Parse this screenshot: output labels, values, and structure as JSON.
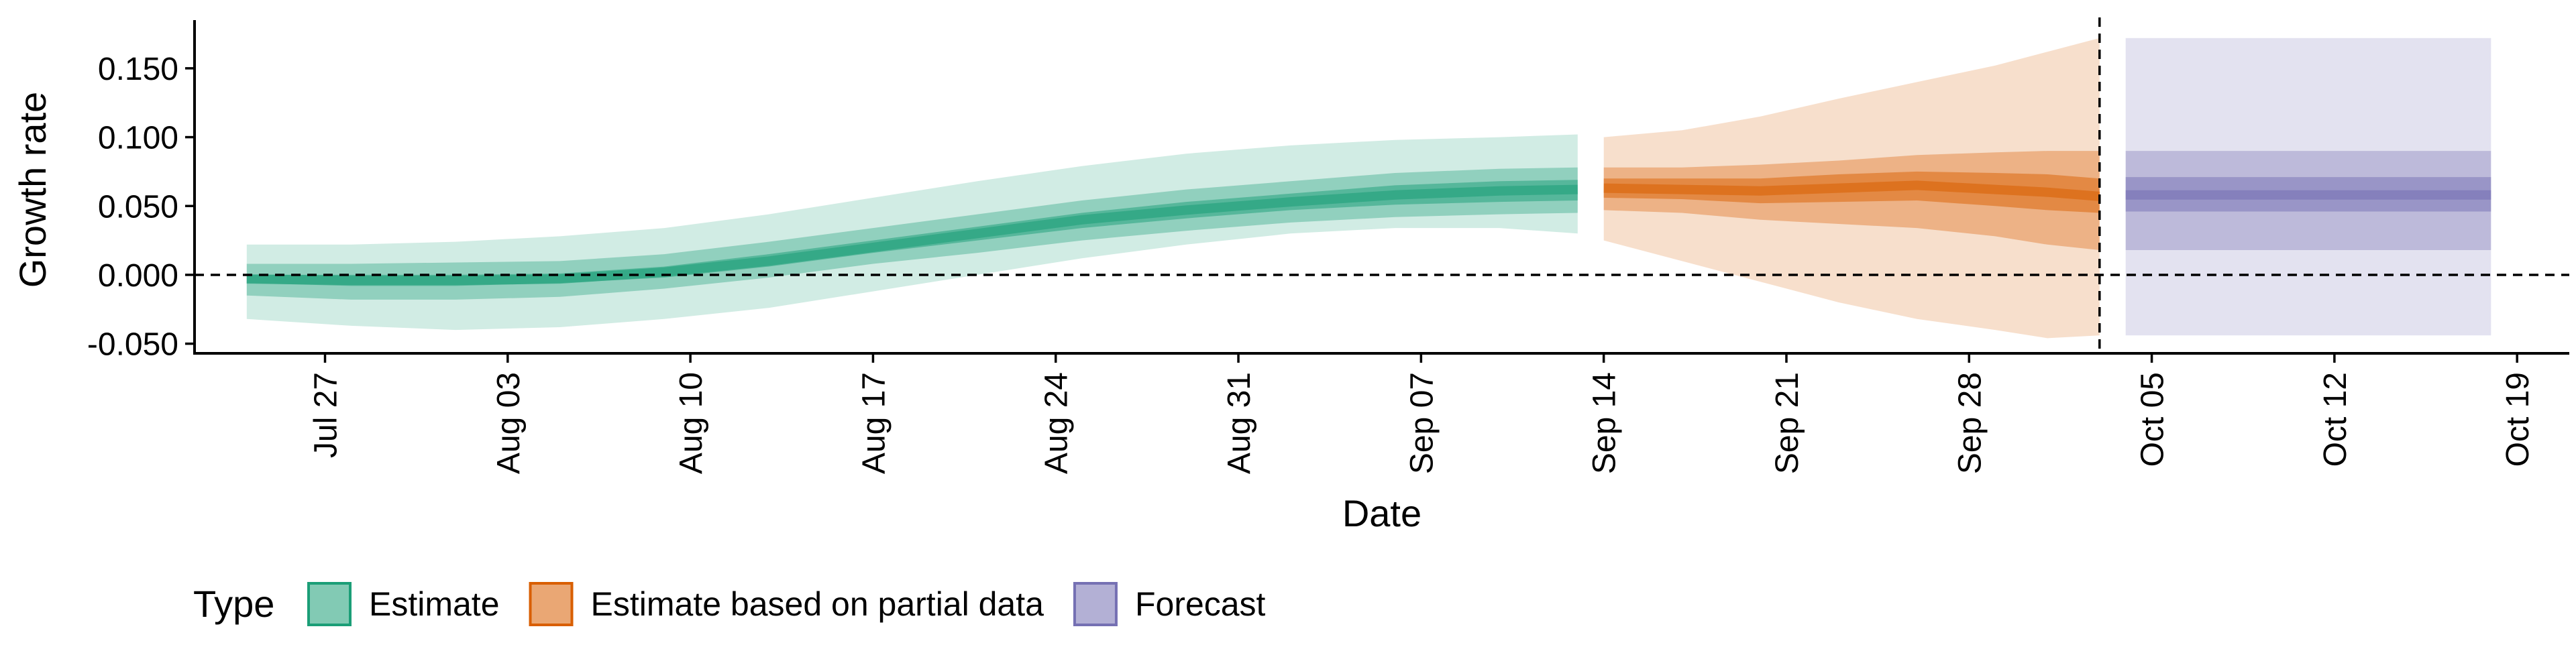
{
  "chart_data": {
    "type": "area",
    "xlabel": "Date",
    "ylabel": "Growth rate",
    "x_range": [
      "2020-07-22",
      "2020-10-21"
    ],
    "ylim": [
      -0.057,
      0.185
    ],
    "x_ticks": [
      {
        "date": "2020-07-27",
        "label": "Jul 27"
      },
      {
        "date": "2020-08-03",
        "label": "Aug 03"
      },
      {
        "date": "2020-08-10",
        "label": "Aug 10"
      },
      {
        "date": "2020-08-17",
        "label": "Aug 17"
      },
      {
        "date": "2020-08-24",
        "label": "Aug 24"
      },
      {
        "date": "2020-08-31",
        "label": "Aug 31"
      },
      {
        "date": "2020-09-07",
        "label": "Sep 07"
      },
      {
        "date": "2020-09-14",
        "label": "Sep 14"
      },
      {
        "date": "2020-09-21",
        "label": "Sep 21"
      },
      {
        "date": "2020-09-28",
        "label": "Sep 28"
      },
      {
        "date": "2020-10-05",
        "label": "Oct 05"
      },
      {
        "date": "2020-10-12",
        "label": "Oct 12"
      },
      {
        "date": "2020-10-19",
        "label": "Oct 19"
      }
    ],
    "y_ticks": [
      {
        "value": -0.05,
        "label": "-0.050"
      },
      {
        "value": 0.0,
        "label": "0.000"
      },
      {
        "value": 0.05,
        "label": "0.050"
      },
      {
        "value": 0.1,
        "label": "0.100"
      },
      {
        "value": 0.15,
        "label": "0.150"
      }
    ],
    "reference_lines": {
      "horizontal_y": 0.0,
      "vertical_date": "2020-10-03"
    },
    "legend": {
      "title": "Type",
      "position": "bottom-left"
    },
    "grid": false,
    "series": [
      {
        "name": "Estimate",
        "color": "#1b9e77",
        "x": [
          "2020-07-24",
          "2020-07-28",
          "2020-08-01",
          "2020-08-05",
          "2020-08-09",
          "2020-08-13",
          "2020-08-17",
          "2020-08-21",
          "2020-08-25",
          "2020-08-29",
          "2020-09-02",
          "2020-09-06",
          "2020-09-10",
          "2020-09-13"
        ],
        "median": [
          -0.003,
          -0.004,
          -0.004,
          -0.003,
          0.002,
          0.01,
          0.02,
          0.03,
          0.04,
          0.047,
          0.053,
          0.058,
          0.061,
          0.062
        ],
        "lower_50": [
          -0.006,
          -0.008,
          -0.008,
          -0.006,
          -0.002,
          0.006,
          0.016,
          0.025,
          0.034,
          0.041,
          0.047,
          0.051,
          0.053,
          0.054
        ],
        "upper_50": [
          0.0,
          0.0,
          0.0,
          0.001,
          0.006,
          0.015,
          0.025,
          0.035,
          0.045,
          0.053,
          0.059,
          0.065,
          0.068,
          0.069
        ],
        "lower_90": [
          -0.015,
          -0.018,
          -0.018,
          -0.016,
          -0.01,
          -0.002,
          0.008,
          0.016,
          0.025,
          0.032,
          0.038,
          0.042,
          0.044,
          0.045
        ],
        "upper_90": [
          0.008,
          0.008,
          0.009,
          0.01,
          0.015,
          0.024,
          0.034,
          0.044,
          0.054,
          0.062,
          0.068,
          0.074,
          0.077,
          0.078
        ],
        "lower_95": [
          -0.032,
          -0.037,
          -0.04,
          -0.038,
          -0.032,
          -0.024,
          -0.012,
          0.0,
          0.012,
          0.022,
          0.03,
          0.034,
          0.034,
          0.03
        ],
        "upper_95": [
          0.022,
          0.022,
          0.024,
          0.028,
          0.034,
          0.044,
          0.056,
          0.068,
          0.079,
          0.088,
          0.094,
          0.098,
          0.1,
          0.102
        ]
      },
      {
        "name": "Estimate based on partial data",
        "color": "#d95f02",
        "x": [
          "2020-09-14",
          "2020-09-17",
          "2020-09-20",
          "2020-09-23",
          "2020-09-26",
          "2020-09-29",
          "2020-10-01",
          "2020-10-03"
        ],
        "median": [
          0.063,
          0.062,
          0.061,
          0.063,
          0.065,
          0.062,
          0.06,
          0.057
        ],
        "lower_50": [
          0.056,
          0.055,
          0.052,
          0.053,
          0.054,
          0.05,
          0.047,
          0.045
        ],
        "upper_50": [
          0.07,
          0.07,
          0.07,
          0.073,
          0.075,
          0.074,
          0.073,
          0.07
        ],
        "lower_90": [
          0.047,
          0.045,
          0.04,
          0.037,
          0.034,
          0.028,
          0.022,
          0.018
        ],
        "upper_90": [
          0.078,
          0.078,
          0.08,
          0.083,
          0.087,
          0.089,
          0.09,
          0.09
        ],
        "lower_95": [
          0.025,
          0.01,
          -0.005,
          -0.02,
          -0.032,
          -0.04,
          -0.046,
          -0.044
        ],
        "upper_95": [
          0.1,
          0.105,
          0.115,
          0.128,
          0.14,
          0.152,
          0.162,
          0.172
        ]
      },
      {
        "name": "Forecast",
        "color": "#7570b3",
        "x": [
          "2020-10-04",
          "2020-10-18"
        ],
        "median": [
          0.058,
          0.058
        ],
        "lower_50": [
          0.046,
          0.046
        ],
        "upper_50": [
          0.071,
          0.071
        ],
        "lower_90": [
          0.018,
          0.018
        ],
        "upper_90": [
          0.09,
          0.09
        ],
        "lower_95": [
          -0.044,
          -0.044
        ],
        "upper_95": [
          0.172,
          0.172
        ]
      }
    ]
  }
}
